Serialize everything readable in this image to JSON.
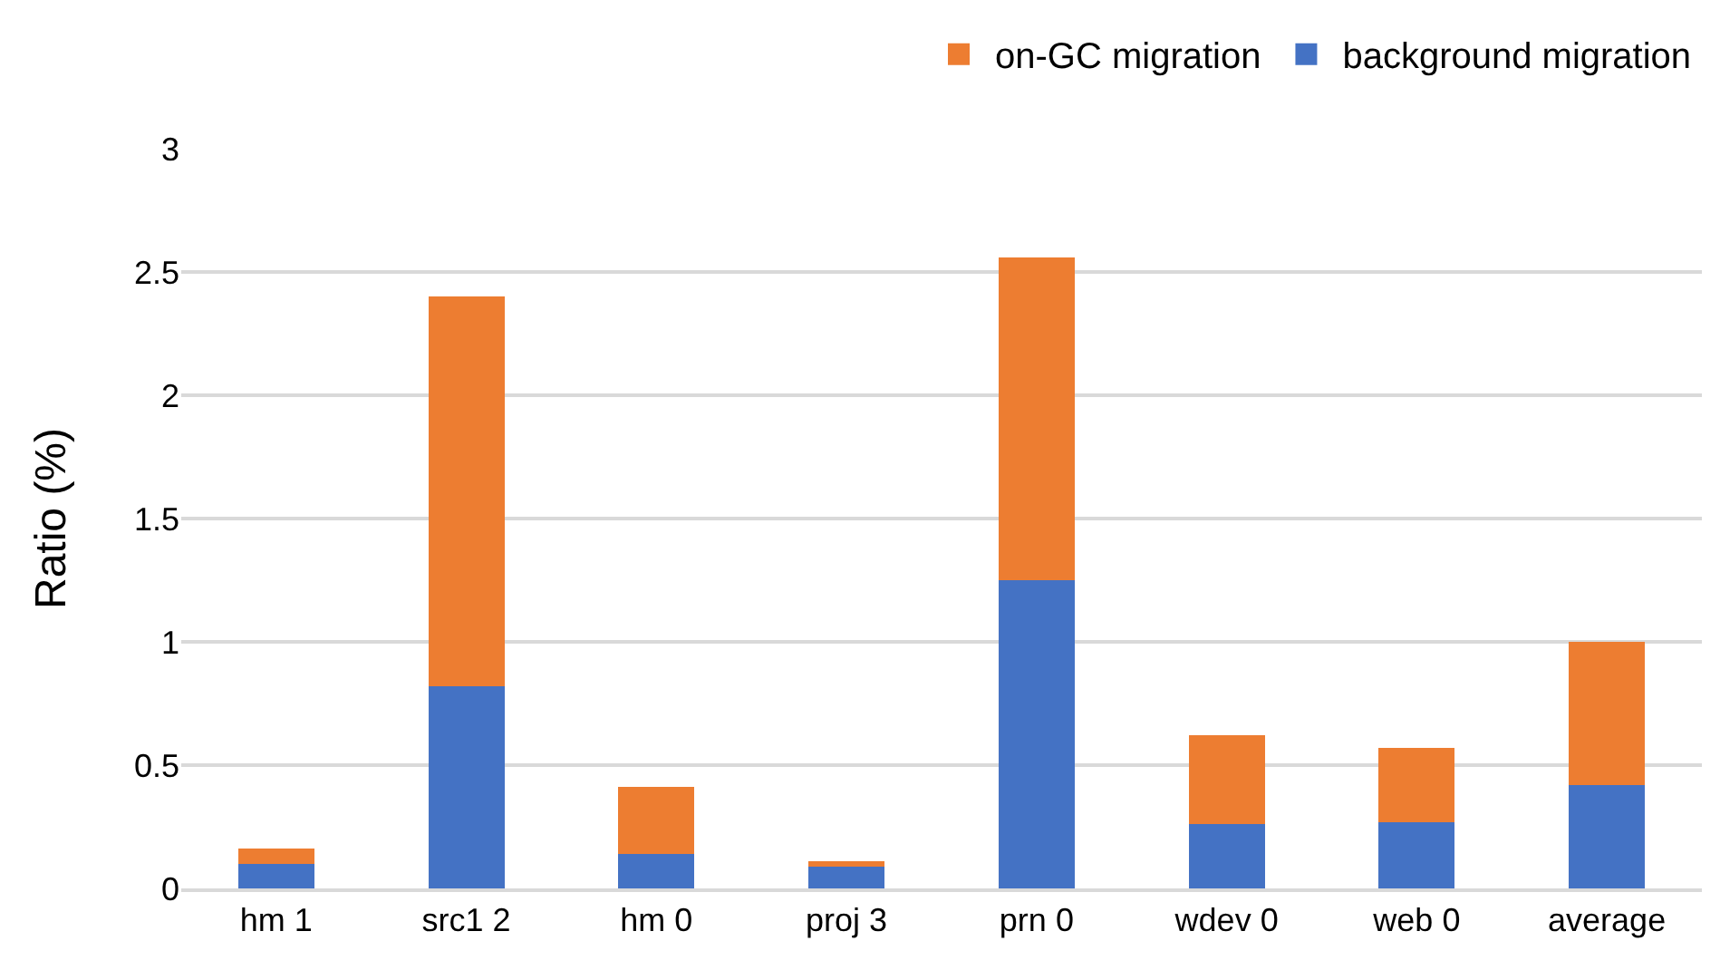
{
  "chart_data": {
    "type": "bar",
    "stacked": true,
    "ylabel": "Ratio (%)",
    "categories": [
      "hm 1",
      "src1 2",
      "hm 0",
      "proj 3",
      "prn 0",
      "wdev 0",
      "web 0",
      "average"
    ],
    "series": [
      {
        "name": "background migration",
        "color": "#4472c4",
        "values": [
          0.1,
          0.82,
          0.14,
          0.09,
          1.25,
          0.26,
          0.27,
          0.42
        ]
      },
      {
        "name": "on-GC migration",
        "color": "#ed7d31",
        "values": [
          0.06,
          1.58,
          0.27,
          0.02,
          1.31,
          0.36,
          0.3,
          0.58
        ]
      }
    ],
    "ylim": [
      0,
      3
    ],
    "yticks": [
      0,
      0.5,
      1,
      1.5,
      2,
      2.5,
      3
    ],
    "grid": "y",
    "legend": "top right"
  }
}
